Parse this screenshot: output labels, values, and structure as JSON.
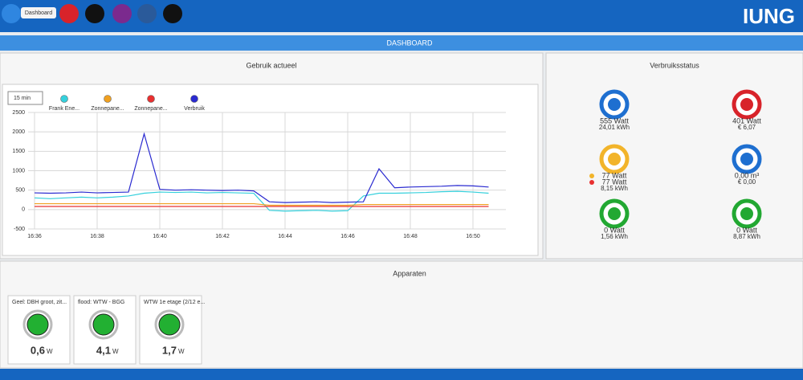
{
  "nav": {
    "tooltip": "Dashboard",
    "title": "DASHBOARD",
    "logo": "IUNG"
  },
  "chart_panel": {
    "title": "Gebruik actueel",
    "range_select": "15 min"
  },
  "chart_data": {
    "type": "line",
    "categories": [
      "16:36",
      null,
      null,
      null,
      "16:38",
      null,
      null,
      null,
      "16:40",
      null,
      null,
      null,
      "16:42",
      null,
      null,
      null,
      "16:44",
      null,
      null,
      null,
      "16:46",
      null,
      null,
      null,
      "16:48",
      null,
      null,
      null,
      "16:50",
      null
    ],
    "series": [
      {
        "name": "Frank Ene...",
        "color": "#35d0dc",
        "values": [
          300,
          280,
          300,
          320,
          300,
          320,
          350,
          420,
          450,
          440,
          450,
          430,
          440,
          430,
          420,
          -20,
          -40,
          -30,
          -20,
          -40,
          -30,
          350,
          420,
          420,
          430,
          440,
          460,
          470,
          450,
          420
        ]
      },
      {
        "name": "Zonnepane...",
        "color": "#f0a020",
        "values": [
          150,
          150,
          150,
          150,
          150,
          150,
          150,
          150,
          150,
          150,
          150,
          150,
          150,
          150,
          150,
          110,
          110,
          110,
          110,
          110,
          110,
          130,
          130,
          130,
          130,
          130,
          130,
          130,
          130,
          130
        ]
      },
      {
        "name": "Zonnepane...",
        "color": "#e83030",
        "values": [
          80,
          80,
          80,
          80,
          80,
          80,
          80,
          80,
          80,
          80,
          80,
          80,
          80,
          80,
          80,
          80,
          80,
          80,
          80,
          80,
          80,
          80,
          80,
          80,
          80,
          80,
          80,
          80,
          80,
          80
        ]
      },
      {
        "name": "Verbruik",
        "color": "#2a2ad0",
        "values": [
          430,
          420,
          430,
          450,
          430,
          440,
          450,
          1950,
          520,
          500,
          510,
          500,
          490,
          500,
          480,
          200,
          180,
          190,
          200,
          180,
          190,
          200,
          1050,
          560,
          580,
          590,
          600,
          620,
          610,
          580
        ]
      }
    ],
    "ylim": [
      -500,
      2500
    ],
    "yticks": [
      -500,
      0,
      500,
      1000,
      1500,
      2000,
      2500
    ],
    "grid": true
  },
  "status": {
    "title": "Verbruiksstatus",
    "tiles": [
      {
        "color": "#1e6fd0",
        "lines": [
          "555 Watt",
          "24,01 kWh"
        ]
      },
      {
        "color": "#d8232a",
        "lines": [
          "401 Watt",
          "€ 6,07"
        ]
      },
      {
        "color": "#f2b42a",
        "lines": [
          "77 Watt",
          "77 Watt",
          "8,15 kWh"
        ]
      },
      {
        "color": "#1e6fd0",
        "lines": [
          "0,00 m³",
          "€ 0,00"
        ]
      },
      {
        "color": "#22a832",
        "lines": [
          "0 Watt",
          "1,56 kWh"
        ]
      },
      {
        "color": "#22a832",
        "lines": [
          "0 Watt",
          "8,87 kWh"
        ]
      }
    ]
  },
  "devices": {
    "title": "Apparaten",
    "items": [
      {
        "name": "Geel: DBH groot, zit...",
        "value": "0,6",
        "unit": "W"
      },
      {
        "name": "flood: WTW - BGG",
        "value": "4,1",
        "unit": "W"
      },
      {
        "name": "WTW 1e etage (2/12 e...",
        "value": "1,7",
        "unit": "W"
      }
    ]
  }
}
